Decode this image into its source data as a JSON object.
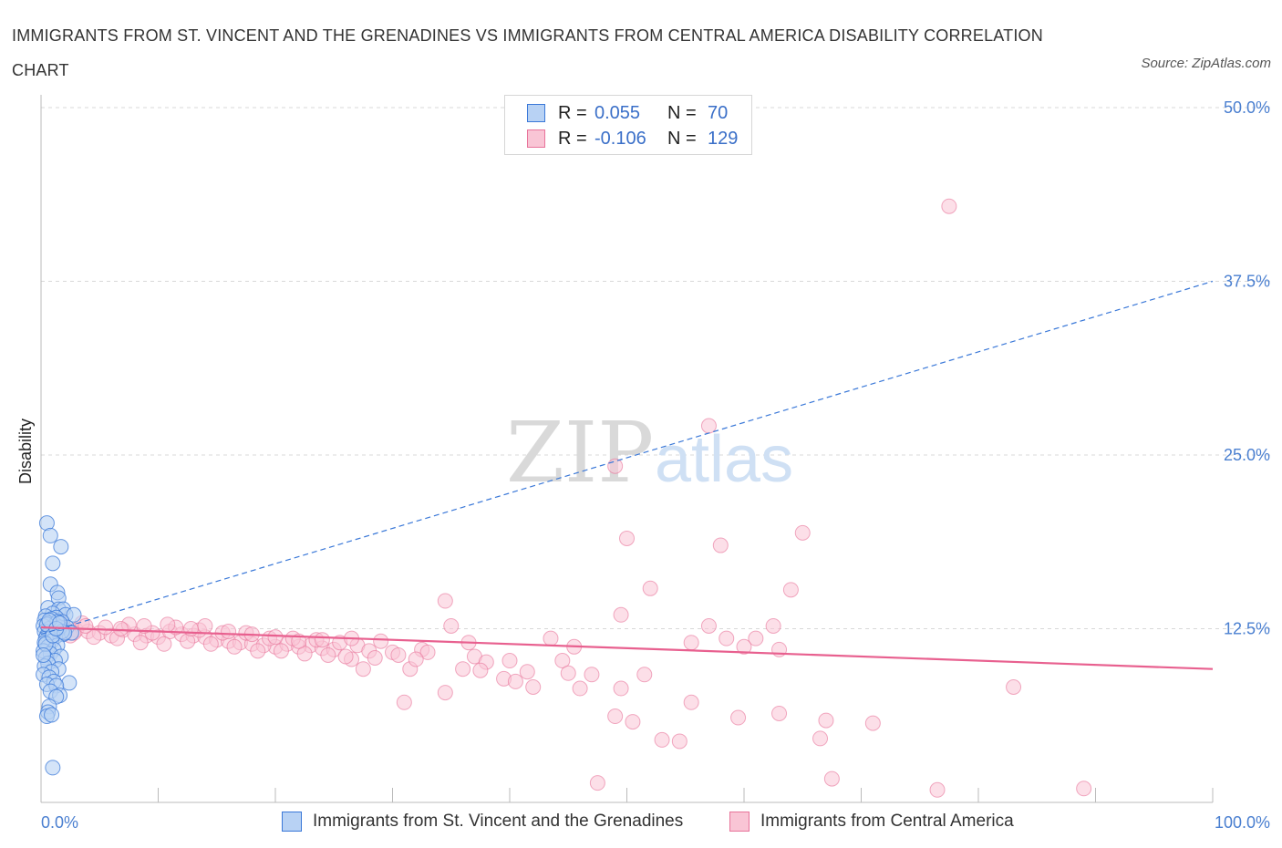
{
  "title": "IMMIGRANTS FROM ST. VINCENT AND THE GRENADINES VS IMMIGRANTS FROM CENTRAL AMERICA DISABILITY CORRELATION CHART",
  "source": "Source: ZipAtlas.com",
  "watermark": {
    "zip": "ZIP",
    "atlas": "atlas"
  },
  "legend": {
    "rows": [
      {
        "r_label": "R =",
        "r_value": "0.055",
        "n_label": "N =",
        "n_value": "70"
      },
      {
        "r_label": "R =",
        "r_value": "-0.106",
        "n_label": "N =",
        "n_value": "129"
      }
    ]
  },
  "bottom_legend": {
    "series_a": "Immigrants from St. Vincent and the Grenadines",
    "series_b": "Immigrants from Central America"
  },
  "colors": {
    "series_a_fill": "#b8d2f4",
    "series_a_stroke": "#3a78d8",
    "series_b_fill": "#f9c5d5",
    "series_b_stroke": "#e8739a",
    "trend_a": "#3a78d8",
    "trend_b": "#e8608f",
    "grid": "#d8d8d8",
    "axis_text": "#4a7fd0"
  },
  "chart_data": {
    "type": "scatter",
    "title": "IMMIGRANTS FROM ST. VINCENT AND THE GRENADINES VS IMMIGRANTS FROM CENTRAL AMERICA DISABILITY CORRELATION CHART",
    "xlabel": "",
    "ylabel": "Disability",
    "xlim": [
      0,
      100
    ],
    "ylim": [
      0,
      50
    ],
    "x_tick_labels": [
      "0.0%",
      "100.0%"
    ],
    "y_tick_labels": [
      "12.5%",
      "25.0%",
      "37.5%",
      "50.0%"
    ],
    "y_ticks": [
      12.5,
      25.0,
      37.5,
      50.0
    ],
    "grid": true,
    "legend_placement": "top-center",
    "series": [
      {
        "name": "Immigrants from St. Vincent and the Grenadines",
        "R": 0.055,
        "N": 70,
        "trend": {
          "x": [
            0,
            100
          ],
          "y": [
            12.1,
            37.5
          ],
          "style": "dashed"
        },
        "points": [
          [
            0.5,
            20.1
          ],
          [
            0.8,
            19.2
          ],
          [
            1.7,
            18.4
          ],
          [
            1.0,
            17.2
          ],
          [
            0.8,
            15.7
          ],
          [
            1.4,
            15.1
          ],
          [
            1.5,
            14.7
          ],
          [
            0.6,
            14.0
          ],
          [
            1.5,
            13.9
          ],
          [
            1.9,
            13.9
          ],
          [
            1.0,
            13.6
          ],
          [
            2.1,
            13.5
          ],
          [
            2.8,
            13.5
          ],
          [
            0.4,
            13.4
          ],
          [
            1.3,
            13.3
          ],
          [
            0.9,
            13.2
          ],
          [
            0.3,
            13.1
          ],
          [
            1.8,
            13.0
          ],
          [
            0.6,
            12.9
          ],
          [
            1.2,
            12.8
          ],
          [
            0.2,
            12.7
          ],
          [
            2.2,
            12.6
          ],
          [
            0.7,
            12.5
          ],
          [
            1.5,
            12.4
          ],
          [
            0.3,
            12.3
          ],
          [
            1.0,
            12.2
          ],
          [
            1.9,
            12.1
          ],
          [
            0.5,
            12.0
          ],
          [
            1.2,
            11.9
          ],
          [
            0.4,
            11.8
          ],
          [
            2.6,
            12.2
          ],
          [
            1.6,
            12.6
          ],
          [
            0.9,
            11.6
          ],
          [
            0.3,
            11.5
          ],
          [
            1.4,
            11.3
          ],
          [
            0.6,
            11.2
          ],
          [
            1.1,
            11.0
          ],
          [
            0.2,
            10.9
          ],
          [
            0.8,
            10.7
          ],
          [
            1.7,
            10.5
          ],
          [
            0.4,
            10.4
          ],
          [
            1.2,
            10.2
          ],
          [
            0.6,
            10.0
          ],
          [
            0.3,
            9.8
          ],
          [
            1.5,
            9.6
          ],
          [
            0.9,
            9.4
          ],
          [
            0.2,
            9.2
          ],
          [
            0.7,
            9.0
          ],
          [
            1.1,
            8.7
          ],
          [
            2.4,
            8.6
          ],
          [
            0.5,
            8.5
          ],
          [
            1.3,
            8.4
          ],
          [
            0.8,
            8.0
          ],
          [
            1.6,
            7.7
          ],
          [
            1.3,
            7.6
          ],
          [
            0.7,
            6.9
          ],
          [
            0.6,
            6.5
          ],
          [
            0.5,
            6.2
          ],
          [
            0.9,
            6.3
          ],
          [
            1.0,
            2.5
          ],
          [
            1.4,
            13.0
          ],
          [
            0.5,
            12.8
          ],
          [
            1.8,
            12.3
          ],
          [
            0.4,
            11.4
          ],
          [
            1.0,
            12.0
          ],
          [
            2.0,
            12.2
          ],
          [
            0.7,
            13.1
          ],
          [
            1.3,
            12.5
          ],
          [
            0.2,
            10.6
          ],
          [
            1.6,
            12.9
          ]
        ]
      },
      {
        "name": "Immigrants from Central America",
        "R": -0.106,
        "N": 129,
        "trend": {
          "x": [
            0,
            100
          ],
          "y": [
            12.6,
            9.6
          ],
          "style": "solid"
        },
        "points": [
          [
            77.5,
            42.9
          ],
          [
            57.0,
            27.1
          ],
          [
            49.0,
            24.2
          ],
          [
            65.0,
            19.4
          ],
          [
            50.0,
            19.0
          ],
          [
            58.0,
            18.5
          ],
          [
            52.0,
            15.4
          ],
          [
            64.0,
            15.3
          ],
          [
            34.5,
            14.5
          ],
          [
            49.5,
            13.5
          ],
          [
            57.0,
            12.7
          ],
          [
            62.5,
            12.7
          ],
          [
            35.0,
            12.7
          ],
          [
            58.5,
            11.8
          ],
          [
            61.0,
            11.8
          ],
          [
            43.5,
            11.8
          ],
          [
            55.5,
            11.5
          ],
          [
            63.0,
            11.0
          ],
          [
            60.0,
            11.2
          ],
          [
            45.5,
            11.2
          ],
          [
            36.5,
            11.5
          ],
          [
            29.0,
            11.6
          ],
          [
            27.0,
            11.3
          ],
          [
            23.0,
            11.3
          ],
          [
            20.0,
            11.2
          ],
          [
            32.5,
            11.0
          ],
          [
            30.0,
            10.8
          ],
          [
            37.0,
            10.5
          ],
          [
            38.0,
            10.1
          ],
          [
            40.0,
            10.2
          ],
          [
            44.5,
            10.2
          ],
          [
            36.0,
            9.6
          ],
          [
            31.5,
            9.6
          ],
          [
            27.5,
            9.6
          ],
          [
            26.5,
            10.3
          ],
          [
            37.5,
            9.5
          ],
          [
            41.5,
            9.4
          ],
          [
            45.0,
            9.3
          ],
          [
            47.0,
            9.2
          ],
          [
            39.5,
            8.9
          ],
          [
            40.5,
            8.7
          ],
          [
            51.5,
            9.2
          ],
          [
            42.0,
            8.3
          ],
          [
            46.0,
            8.2
          ],
          [
            49.5,
            8.2
          ],
          [
            55.5,
            7.2
          ],
          [
            34.5,
            7.9
          ],
          [
            31.0,
            7.2
          ],
          [
            49.0,
            6.2
          ],
          [
            50.5,
            5.8
          ],
          [
            59.5,
            6.1
          ],
          [
            63.0,
            6.4
          ],
          [
            67.0,
            5.9
          ],
          [
            71.0,
            5.7
          ],
          [
            53.0,
            4.5
          ],
          [
            54.5,
            4.4
          ],
          [
            66.5,
            4.6
          ],
          [
            83.0,
            8.3
          ],
          [
            89.0,
            1.0
          ],
          [
            76.5,
            0.9
          ],
          [
            67.5,
            1.7
          ],
          [
            47.5,
            1.4
          ],
          [
            2.0,
            12.6
          ],
          [
            3.0,
            12.4
          ],
          [
            4.0,
            12.3
          ],
          [
            5.0,
            12.2
          ],
          [
            6.0,
            12.0
          ],
          [
            7.0,
            12.4
          ],
          [
            8.0,
            12.1
          ],
          [
            9.0,
            12.0
          ],
          [
            10.0,
            11.9
          ],
          [
            11.0,
            12.3
          ],
          [
            12.0,
            12.1
          ],
          [
            13.0,
            12.0
          ],
          [
            14.0,
            11.9
          ],
          [
            15.0,
            11.7
          ],
          [
            16.0,
            11.6
          ],
          [
            17.0,
            11.5
          ],
          [
            18.0,
            11.4
          ],
          [
            19.0,
            11.3
          ],
          [
            21.0,
            11.4
          ],
          [
            22.0,
            11.2
          ],
          [
            24.0,
            11.1
          ],
          [
            25.0,
            11.0
          ],
          [
            28.0,
            10.9
          ],
          [
            33.0,
            10.8
          ],
          [
            3.5,
            12.9
          ],
          [
            5.5,
            12.6
          ],
          [
            7.5,
            12.8
          ],
          [
            9.5,
            12.2
          ],
          [
            11.5,
            12.6
          ],
          [
            13.5,
            12.4
          ],
          [
            15.5,
            12.2
          ],
          [
            17.5,
            12.2
          ],
          [
            19.5,
            11.8
          ],
          [
            21.5,
            11.8
          ],
          [
            23.5,
            11.7
          ],
          [
            25.5,
            11.5
          ],
          [
            2.5,
            12.0
          ],
          [
            4.5,
            11.9
          ],
          [
            6.5,
            11.8
          ],
          [
            8.5,
            11.5
          ],
          [
            10.5,
            11.4
          ],
          [
            12.5,
            11.6
          ],
          [
            14.5,
            11.4
          ],
          [
            16.5,
            11.2
          ],
          [
            18.5,
            10.9
          ],
          [
            20.5,
            10.9
          ],
          [
            22.5,
            10.7
          ],
          [
            24.5,
            10.6
          ],
          [
            26.0,
            10.5
          ],
          [
            28.5,
            10.4
          ],
          [
            30.5,
            10.6
          ],
          [
            32.0,
            10.3
          ],
          [
            1.5,
            13.2
          ],
          [
            1.0,
            12.8
          ],
          [
            2.8,
            12.2
          ],
          [
            3.8,
            12.7
          ],
          [
            6.8,
            12.5
          ],
          [
            8.8,
            12.7
          ],
          [
            10.8,
            12.8
          ],
          [
            12.8,
            12.5
          ],
          [
            14.0,
            12.7
          ],
          [
            16.0,
            12.3
          ],
          [
            18.0,
            12.1
          ],
          [
            20.0,
            11.9
          ],
          [
            22.0,
            11.6
          ],
          [
            24.0,
            11.7
          ],
          [
            26.5,
            11.8
          ]
        ]
      }
    ]
  }
}
